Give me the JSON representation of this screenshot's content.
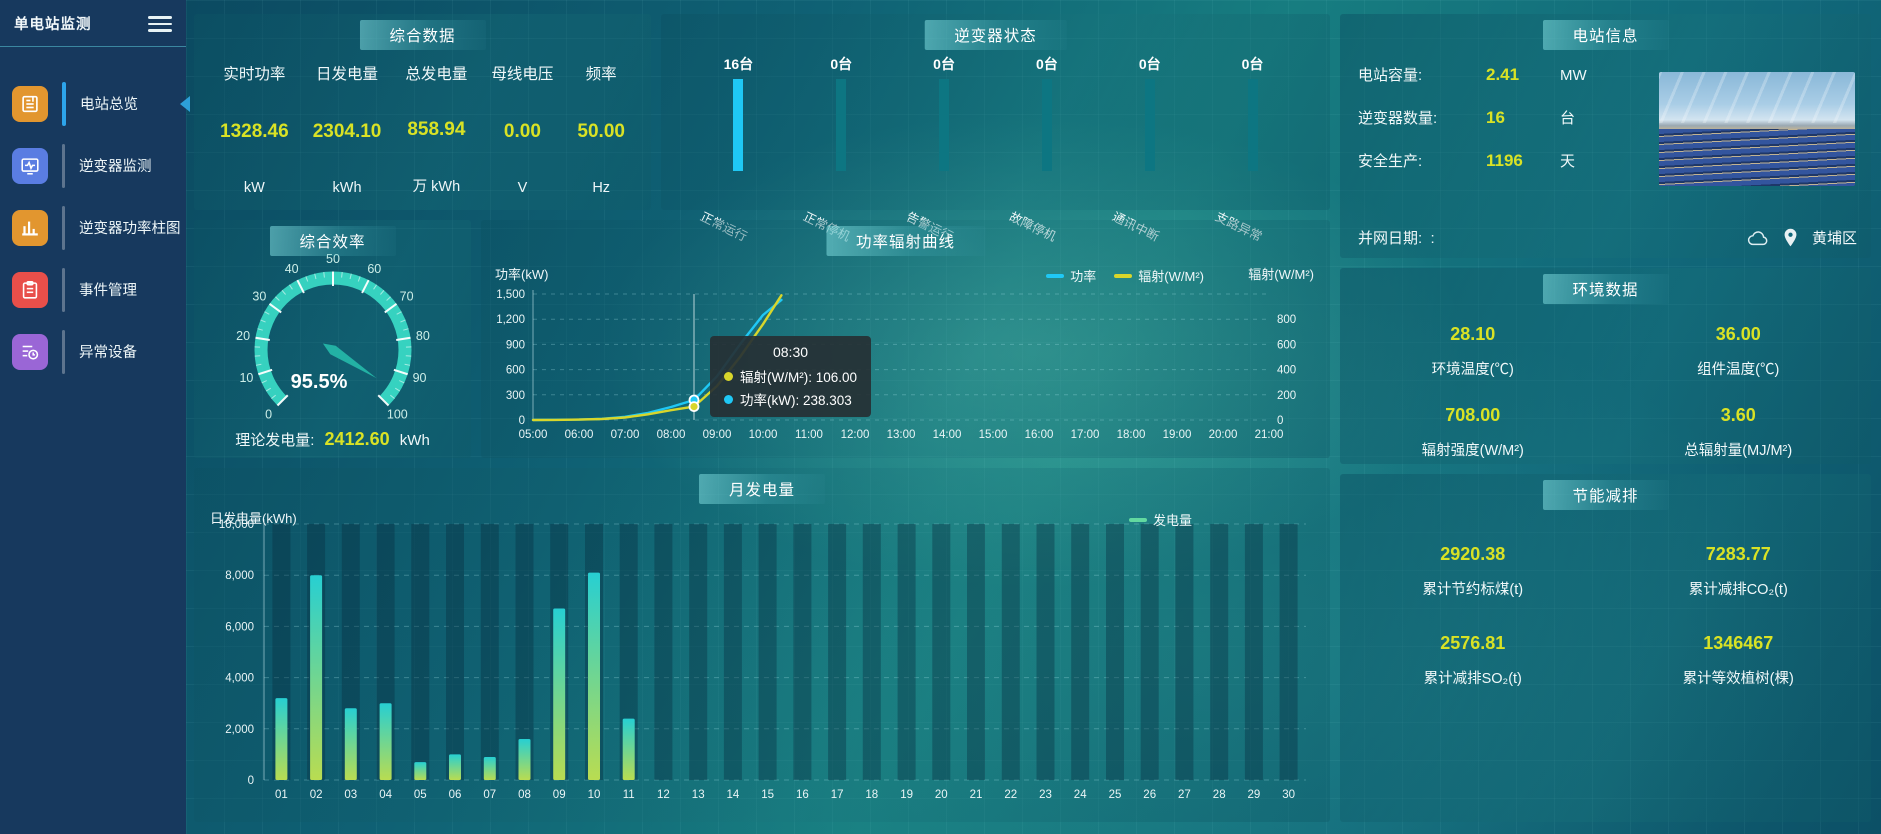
{
  "sidebar": {
    "title": "单电站监测",
    "items": [
      {
        "label": "电站总览",
        "icon": "station-overview-icon",
        "color": "#e2962f",
        "active": true
      },
      {
        "label": "逆变器监测",
        "icon": "inverter-monitor-icon",
        "color": "#5a7de2",
        "active": false
      },
      {
        "label": "逆变器功率柱图",
        "icon": "power-bars-icon",
        "color": "#e2962f",
        "active": false
      },
      {
        "label": "事件管理",
        "icon": "event-manage-icon",
        "color": "#e84f4a",
        "active": false
      },
      {
        "label": "异常设备",
        "icon": "abnormal-device-icon",
        "color": "#9a66d6",
        "active": false
      }
    ]
  },
  "panels": {
    "summary": {
      "title": "综合数据",
      "stats": [
        {
          "label": "实时功率",
          "value": "1328.46",
          "unit": "kW"
        },
        {
          "label": "日发电量",
          "value": "2304.10",
          "unit": "kWh"
        },
        {
          "label": "总发电量",
          "value": "858.94",
          "unit": "万 kWh"
        },
        {
          "label": "母线电压",
          "value": "0.00",
          "unit": "V"
        },
        {
          "label": "频率",
          "value": "50.00",
          "unit": "Hz"
        }
      ]
    },
    "inverter": {
      "title": "逆变器状态"
    },
    "station": {
      "title": "电站信息",
      "rows": [
        {
          "label": "电站容量:",
          "value": "2.41",
          "unit": "MW"
        },
        {
          "label": "逆变器数量:",
          "value": "16",
          "unit": "台"
        },
        {
          "label": "安全生产:",
          "value": "1196",
          "unit": "天"
        }
      ],
      "date_label": "并网日期:",
      "date_value": ":",
      "location": "黄埔区"
    },
    "efficiency": {
      "title": "综合效率",
      "footer_label": "理论发电量:",
      "footer_value": "2412.60",
      "footer_unit": "kWh"
    },
    "power": {
      "title": "功率辐射曲线"
    },
    "environment": {
      "title": "环境数据",
      "cells": [
        {
          "value": "28.10",
          "label": "环境温度(℃)"
        },
        {
          "value": "36.00",
          "label": "组件温度(℃)"
        },
        {
          "value": "708.00",
          "label": "辐射强度(W/M²)"
        },
        {
          "value": "3.60",
          "label": "总辐射量(MJ/M²)"
        }
      ]
    },
    "monthly": {
      "title": "月发电量"
    },
    "saving": {
      "title": "节能减排",
      "cells": [
        {
          "value": "2920.38",
          "label": "累计节约标煤(t)"
        },
        {
          "value": "7283.77",
          "label": "累计减排CO₂(t)"
        },
        {
          "value": "2576.81",
          "label": "累计减排SO₂(t)"
        },
        {
          "value": "1346467",
          "label": "累计等效植树(棵)"
        }
      ]
    }
  },
  "colors": {
    "accent_value": "#d9e225",
    "bar_active": "#1fc8f5",
    "bar_track": "#0d7682",
    "line_power": "#1fc8f5",
    "line_radiation": "#d8d62b",
    "gauge_arc": "#39d8c4",
    "monthly_legend": "#62d9a0"
  },
  "chart_data": [
    {
      "id": "inverter_status",
      "type": "bar",
      "title": "逆变器状态",
      "categories": [
        "正常运行",
        "正常停机",
        "告警运行",
        "故障停机",
        "通讯中断",
        "支路异常"
      ],
      "values": [
        16,
        0,
        0,
        0,
        0,
        0
      ],
      "max": 16,
      "unit": "台",
      "value_labels": [
        "16台",
        "0台",
        "0台",
        "0台",
        "0台",
        "0台"
      ],
      "bar_color_active": "#1fc8f5",
      "bar_color_track": "#0d7682"
    },
    {
      "id": "efficiency_gauge",
      "type": "gauge",
      "title": "综合效率",
      "min": 0,
      "max": 100,
      "value": 95.5,
      "display": "95.5%",
      "tick_step": 10,
      "arc_color": "#39d8c4",
      "needle_color": "#23b1a4"
    },
    {
      "id": "power_radiation",
      "type": "line",
      "title": "功率辐射曲线",
      "x_ticks": [
        "05:00",
        "06:00",
        "07:00",
        "08:00",
        "09:00",
        "10:00",
        "11:00",
        "12:00",
        "13:00",
        "14:00",
        "15:00",
        "16:00",
        "17:00",
        "18:00",
        "19:00",
        "20:00",
        "21:00"
      ],
      "x_range_hours": [
        5,
        21
      ],
      "left_axis": {
        "title": "功率(kW)",
        "ticks": [
          "0",
          "300",
          "600",
          "900",
          "1,200",
          "1,500"
        ],
        "max": 1500
      },
      "right_axis": {
        "title": "辐射(W/M²)",
        "ticks": [
          "0",
          "200",
          "400",
          "600",
          "800"
        ],
        "max": 800
      },
      "series": [
        {
          "name": "功率",
          "color": "#1fc8f5",
          "axis": "left",
          "t": [
            5,
            5.5,
            6,
            6.5,
            7,
            7.5,
            8,
            8.5,
            9,
            9.5,
            10,
            10.4
          ],
          "values": [
            0,
            2,
            5,
            14,
            38,
            85,
            155,
            238.303,
            520,
            900,
            1250,
            1430
          ]
        },
        {
          "name": "辐射(W/M²)",
          "color": "#d8d62b",
          "axis": "right",
          "t": [
            5,
            5.5,
            6,
            6.5,
            7,
            7.5,
            8,
            8.5,
            9,
            9.5,
            10,
            10.4
          ],
          "values": [
            0,
            1,
            3,
            8,
            20,
            45,
            78,
            106,
            270,
            500,
            760,
            990
          ]
        }
      ],
      "crosshair_t": 8.5,
      "tooltip": {
        "title": "08:30",
        "rows": [
          {
            "name": "辐射(W/M²)",
            "value": "106.00",
            "color": "#d8d62b"
          },
          {
            "name": "功率(kW)",
            "value": "238.303",
            "color": "#1fc8f5"
          }
        ]
      },
      "legend": [
        {
          "label": "功率",
          "color": "#1fc8f5"
        },
        {
          "label": "辐射(W/M²)",
          "color": "#d8d62b"
        }
      ]
    },
    {
      "id": "monthly_generation",
      "type": "bar",
      "title": "月发电量",
      "ylabel": "日发电量(kWh)",
      "categories": [
        "01",
        "02",
        "03",
        "04",
        "05",
        "06",
        "07",
        "08",
        "09",
        "10",
        "11",
        "12",
        "13",
        "14",
        "15",
        "16",
        "17",
        "18",
        "19",
        "20",
        "21",
        "22",
        "23",
        "24",
        "25",
        "26",
        "27",
        "28",
        "29",
        "30"
      ],
      "values": [
        3200,
        8000,
        2800,
        3000,
        700,
        1000,
        900,
        1600,
        6700,
        8100,
        2400,
        0,
        0,
        0,
        0,
        0,
        0,
        0,
        0,
        0,
        0,
        0,
        0,
        0,
        0,
        0,
        0,
        0,
        0,
        0
      ],
      "ymax": 10000,
      "y_ticks": [
        "0",
        "2,000",
        "4,000",
        "6,000",
        "8,000",
        "10,000"
      ],
      "legend": [
        {
          "label": "发电量",
          "color": "#62d9a0"
        }
      ],
      "bar_gradient": [
        "#b9dc51",
        "#27cfd2"
      ]
    }
  ]
}
